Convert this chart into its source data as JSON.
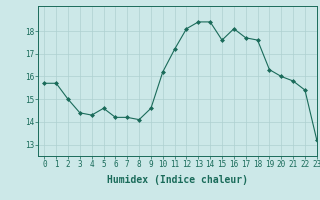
{
  "x": [
    0,
    1,
    2,
    3,
    4,
    5,
    6,
    7,
    8,
    9,
    10,
    11,
    12,
    13,
    14,
    15,
    16,
    17,
    18,
    19,
    20,
    21,
    22,
    23
  ],
  "y": [
    15.7,
    15.7,
    15.0,
    14.4,
    14.3,
    14.6,
    14.2,
    14.2,
    14.1,
    14.6,
    16.2,
    17.2,
    18.1,
    18.4,
    18.4,
    17.6,
    18.1,
    17.7,
    17.6,
    16.3,
    16.0,
    15.8,
    15.4,
    13.2
  ],
  "xlabel": "Humidex (Indice chaleur)",
  "xlim": [
    -0.5,
    23
  ],
  "ylim": [
    12.5,
    19.1
  ],
  "yticks": [
    13,
    14,
    15,
    16,
    17,
    18
  ],
  "xticks": [
    0,
    1,
    2,
    3,
    4,
    5,
    6,
    7,
    8,
    9,
    10,
    11,
    12,
    13,
    14,
    15,
    16,
    17,
    18,
    19,
    20,
    21,
    22,
    23
  ],
  "line_color": "#1a6b5a",
  "marker": "D",
  "marker_size": 2.0,
  "bg_color": "#cce8e8",
  "grid_color": "#aed0d0",
  "tick_color": "#1a6b5a",
  "label_color": "#1a6b5a",
  "font_size_tick": 5.5,
  "font_size_label": 7.0,
  "linewidth": 0.8
}
